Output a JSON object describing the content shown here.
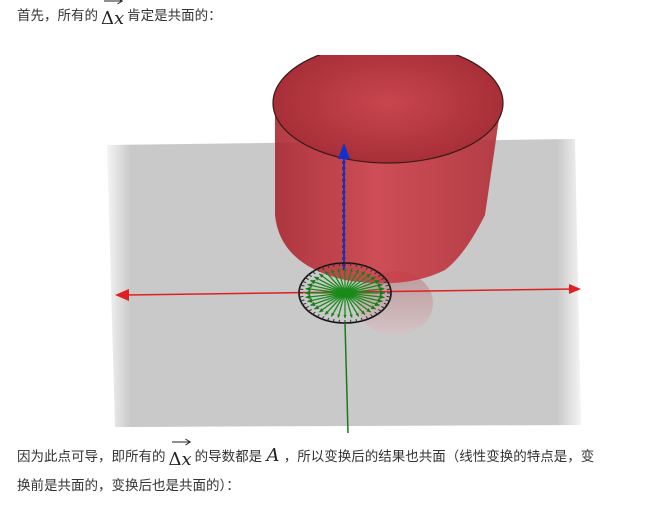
{
  "intro": {
    "before": "首先，所有的",
    "vector": {
      "delta": "Δ",
      "var": "x"
    },
    "after": "肯定是共面的："
  },
  "explanation": {
    "part1": "因为此点可导，即所有的",
    "vector": {
      "delta": "Δ",
      "var": "x"
    },
    "part2": "的导数都是",
    "matrix": "A",
    "part3": "，所以变换后的结果也共面（线性变换的特点是，变",
    "line2": "换前是共面的，变换后也是共面的）："
  },
  "colors": {
    "cylinder": "#c4303a",
    "plane": "#c8c8c8",
    "axis_x": "#e02020",
    "axis_y": "#1a8a1a",
    "axis_z": "#1030d0",
    "vectors": "#1a8a1a"
  },
  "icons": {
    "vector_arrow": "right-arrow-icon"
  }
}
